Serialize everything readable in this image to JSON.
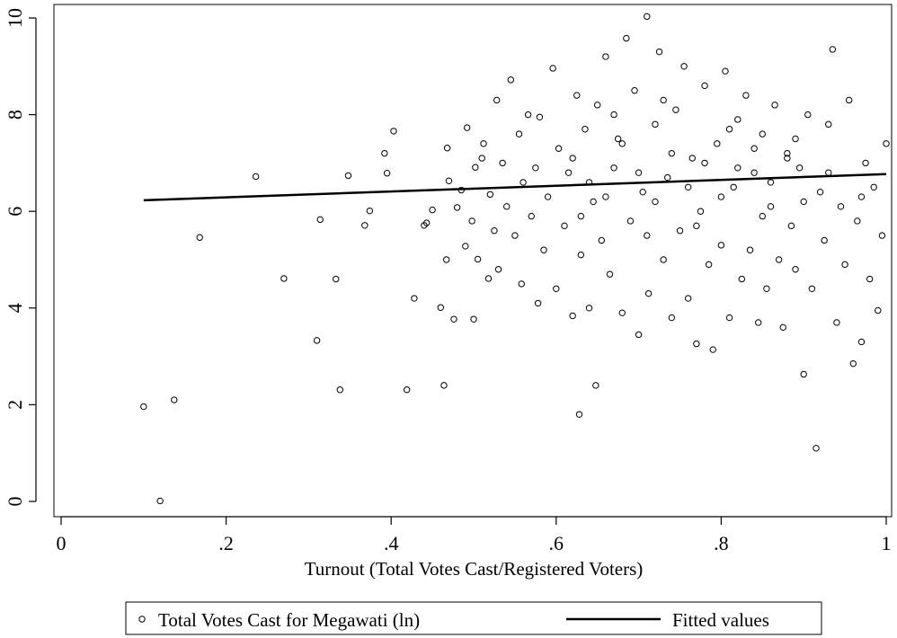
{
  "chart_data": {
    "type": "scatter",
    "title": "",
    "xlabel": "Turnout (Total Votes Cast/Registered Voters)",
    "ylabel": "",
    "xlim": [
      0,
      1
    ],
    "ylim": [
      0,
      10
    ],
    "x_ticks": [
      {
        "value": 0,
        "label": "0"
      },
      {
        "value": 0.2,
        "label": ".2"
      },
      {
        "value": 0.4,
        "label": ".4"
      },
      {
        "value": 0.6,
        "label": ".6"
      },
      {
        "value": 0.8,
        "label": ".8"
      },
      {
        "value": 1,
        "label": "1"
      }
    ],
    "y_ticks": [
      {
        "value": 0,
        "label": "0"
      },
      {
        "value": 2,
        "label": "2"
      },
      {
        "value": 4,
        "label": "4"
      },
      {
        "value": 6,
        "label": "6"
      },
      {
        "value": 8,
        "label": "8"
      },
      {
        "value": 10,
        "label": "10"
      }
    ],
    "grid": false,
    "legend_position": "bottom",
    "series": [
      {
        "name": "Total Votes Cast for Megawati (ln)",
        "type": "scatter",
        "marker": "hollow-circle",
        "color": "#000000",
        "points": [
          [
            0.1,
            1.96
          ],
          [
            0.12,
            0.01
          ],
          [
            0.137,
            2.1
          ],
          [
            0.168,
            5.46
          ],
          [
            0.236,
            6.72
          ],
          [
            0.27,
            4.61
          ],
          [
            0.31,
            3.33
          ],
          [
            0.314,
            5.83
          ],
          [
            0.333,
            4.6
          ],
          [
            0.338,
            2.31
          ],
          [
            0.348,
            6.74
          ],
          [
            0.368,
            5.71
          ],
          [
            0.374,
            6.01
          ],
          [
            0.392,
            7.2
          ],
          [
            0.395,
            6.79
          ],
          [
            0.403,
            7.66
          ],
          [
            0.419,
            2.31
          ],
          [
            0.428,
            4.2
          ],
          [
            0.44,
            5.71
          ],
          [
            0.443,
            5.76
          ],
          [
            0.45,
            6.03
          ],
          [
            0.46,
            4.01
          ],
          [
            0.464,
            2.4
          ],
          [
            0.467,
            5.0
          ],
          [
            0.468,
            7.31
          ],
          [
            0.47,
            6.63
          ],
          [
            0.476,
            3.77
          ],
          [
            0.48,
            6.08
          ],
          [
            0.485,
            6.44
          ],
          [
            0.49,
            5.28
          ],
          [
            0.492,
            7.73
          ],
          [
            0.498,
            5.8
          ],
          [
            0.5,
            3.77
          ],
          [
            0.502,
            6.91
          ],
          [
            0.505,
            5.01
          ],
          [
            0.51,
            7.1
          ],
          [
            0.512,
            7.4
          ],
          [
            0.518,
            4.61
          ],
          [
            0.52,
            6.35
          ],
          [
            0.525,
            5.6
          ],
          [
            0.528,
            8.3
          ],
          [
            0.53,
            4.8
          ],
          [
            0.535,
            7.0
          ],
          [
            0.54,
            6.1
          ],
          [
            0.545,
            8.72
          ],
          [
            0.55,
            5.5
          ],
          [
            0.555,
            7.6
          ],
          [
            0.558,
            4.5
          ],
          [
            0.56,
            6.6
          ],
          [
            0.566,
            8.0
          ],
          [
            0.57,
            5.9
          ],
          [
            0.575,
            6.9
          ],
          [
            0.578,
            4.1
          ],
          [
            0.58,
            7.95
          ],
          [
            0.585,
            5.2
          ],
          [
            0.59,
            6.3
          ],
          [
            0.596,
            8.96
          ],
          [
            0.6,
            4.4
          ],
          [
            0.603,
            7.3
          ],
          [
            0.61,
            5.7
          ],
          [
            0.615,
            6.8
          ],
          [
            0.62,
            3.84
          ],
          [
            0.625,
            8.4
          ],
          [
            0.628,
            1.8
          ],
          [
            0.63,
            5.1
          ],
          [
            0.635,
            7.7
          ],
          [
            0.64,
            4.0
          ],
          [
            0.645,
            6.2
          ],
          [
            0.648,
            2.4
          ],
          [
            0.65,
            8.2
          ],
          [
            0.655,
            5.4
          ],
          [
            0.66,
            9.2
          ],
          [
            0.665,
            4.7
          ],
          [
            0.67,
            6.9
          ],
          [
            0.675,
            7.5
          ],
          [
            0.68,
            3.9
          ],
          [
            0.685,
            9.58
          ],
          [
            0.69,
            5.8
          ],
          [
            0.695,
            8.5
          ],
          [
            0.7,
            3.45
          ],
          [
            0.705,
            6.4
          ],
          [
            0.71,
            10.03
          ],
          [
            0.712,
            4.3
          ],
          [
            0.72,
            7.8
          ],
          [
            0.725,
            9.3
          ],
          [
            0.73,
            5.0
          ],
          [
            0.735,
            6.7
          ],
          [
            0.74,
            3.8
          ],
          [
            0.745,
            8.1
          ],
          [
            0.75,
            5.6
          ],
          [
            0.755,
            9.0
          ],
          [
            0.76,
            4.2
          ],
          [
            0.765,
            7.1
          ],
          [
            0.77,
            3.26
          ],
          [
            0.775,
            6.0
          ],
          [
            0.78,
            8.6
          ],
          [
            0.785,
            4.9
          ],
          [
            0.79,
            3.14
          ],
          [
            0.795,
            7.4
          ],
          [
            0.8,
            5.3
          ],
          [
            0.805,
            8.9
          ],
          [
            0.81,
            3.8
          ],
          [
            0.815,
            6.5
          ],
          [
            0.82,
            7.9
          ],
          [
            0.825,
            4.6
          ],
          [
            0.83,
            8.4
          ],
          [
            0.835,
            5.2
          ],
          [
            0.84,
            6.8
          ],
          [
            0.845,
            3.7
          ],
          [
            0.85,
            7.6
          ],
          [
            0.855,
            4.4
          ],
          [
            0.86,
            6.1
          ],
          [
            0.865,
            8.2
          ],
          [
            0.87,
            5.0
          ],
          [
            0.875,
            3.6
          ],
          [
            0.88,
            7.2
          ],
          [
            0.885,
            5.7
          ],
          [
            0.89,
            4.8
          ],
          [
            0.895,
            6.9
          ],
          [
            0.9,
            2.63
          ],
          [
            0.905,
            8.0
          ],
          [
            0.91,
            4.4
          ],
          [
            0.915,
            1.1
          ],
          [
            0.92,
            6.4
          ],
          [
            0.925,
            5.4
          ],
          [
            0.93,
            7.8
          ],
          [
            0.935,
            9.35
          ],
          [
            0.94,
            3.7
          ],
          [
            0.945,
            6.1
          ],
          [
            0.95,
            4.9
          ],
          [
            0.955,
            8.3
          ],
          [
            0.96,
            2.85
          ],
          [
            0.965,
            5.8
          ],
          [
            0.97,
            3.3
          ],
          [
            0.975,
            7.0
          ],
          [
            0.98,
            4.6
          ],
          [
            0.985,
            6.5
          ],
          [
            0.99,
            3.95
          ],
          [
            0.995,
            5.5
          ],
          [
            1.0,
            7.4
          ],
          [
            0.62,
            7.1
          ],
          [
            0.64,
            6.6
          ],
          [
            0.66,
            6.3
          ],
          [
            0.68,
            7.4
          ],
          [
            0.7,
            6.8
          ],
          [
            0.72,
            6.2
          ],
          [
            0.74,
            7.2
          ],
          [
            0.76,
            6.5
          ],
          [
            0.78,
            7.0
          ],
          [
            0.8,
            6.3
          ],
          [
            0.82,
            6.9
          ],
          [
            0.84,
            7.3
          ],
          [
            0.86,
            6.6
          ],
          [
            0.88,
            7.1
          ],
          [
            0.9,
            6.2
          ],
          [
            0.63,
            5.9
          ],
          [
            0.67,
            8.0
          ],
          [
            0.71,
            5.5
          ],
          [
            0.73,
            8.3
          ],
          [
            0.77,
            5.7
          ],
          [
            0.81,
            7.7
          ],
          [
            0.85,
            5.9
          ],
          [
            0.89,
            7.5
          ],
          [
            0.93,
            6.8
          ],
          [
            0.97,
            6.3
          ]
        ]
      },
      {
        "name": "Fitted values",
        "type": "line",
        "color": "#000000",
        "points": [
          [
            0.1,
            6.23
          ],
          [
            1.0,
            6.77
          ]
        ]
      }
    ]
  }
}
